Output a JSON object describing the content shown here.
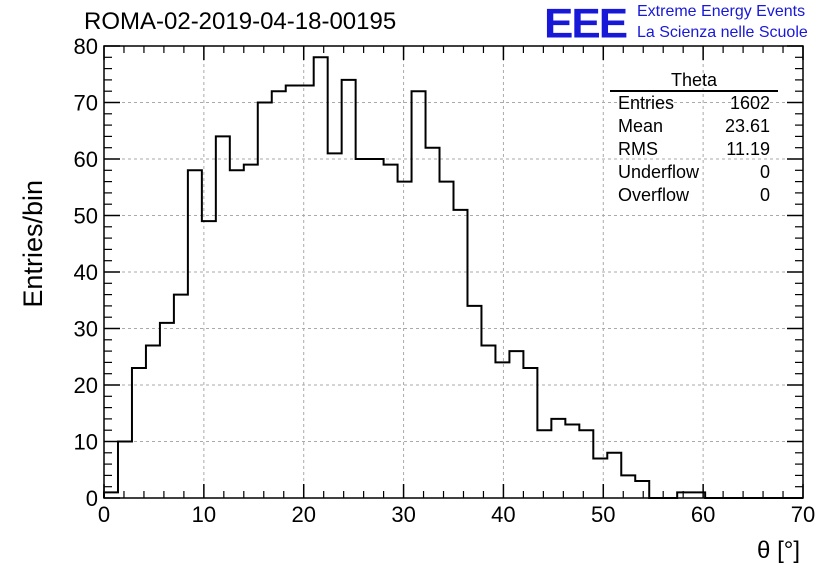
{
  "header": {
    "title": "ROMA-02-2019-04-18-00195"
  },
  "logo": {
    "mark": "EEE",
    "line1": "Extreme Energy Events",
    "line2": "La Scienza nelle Scuole",
    "color": "#1818d8"
  },
  "stats": {
    "title": "Theta",
    "rows": [
      {
        "label": "Entries",
        "value": "1602"
      },
      {
        "label": "Mean",
        "value": "23.61"
      },
      {
        "label": "RMS",
        "value": "11.19"
      },
      {
        "label": "Underflow",
        "value": "0"
      },
      {
        "label": "Overflow",
        "value": "0"
      }
    ]
  },
  "chart_data": {
    "type": "bar",
    "style": "step-histogram",
    "title": "ROMA-02-2019-04-18-00195",
    "xlabel": "θ [°]",
    "ylabel": "Entries/bin",
    "xlim": [
      0,
      70
    ],
    "ylim": [
      0,
      80
    ],
    "grid": true,
    "bin_width": 1.4,
    "bin_edges_start": 0,
    "values": [
      1,
      10,
      23,
      27,
      31,
      36,
      58,
      49,
      64,
      58,
      59,
      70,
      72,
      73,
      73,
      78,
      61,
      74,
      60,
      60,
      59,
      56,
      72,
      62,
      56,
      51,
      34,
      27,
      24,
      26,
      23,
      12,
      14,
      13,
      12,
      7,
      8,
      4,
      3,
      0,
      0,
      1,
      1,
      0,
      0,
      0,
      0,
      0,
      0,
      0
    ],
    "xticks": [
      "0",
      "10",
      "20",
      "30",
      "40",
      "50",
      "60",
      "70"
    ],
    "yticks": [
      "0",
      "10",
      "20",
      "30",
      "40",
      "50",
      "60",
      "70",
      "80"
    ]
  }
}
